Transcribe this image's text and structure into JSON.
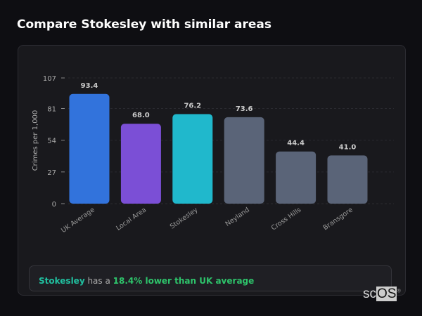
{
  "title": "Compare Stokesley with similar areas",
  "chart_data": {
    "type": "bar",
    "categories": [
      "UK Average",
      "Local Area",
      "Stokesley",
      "Neyland",
      "Cross Hills",
      "Bransgore"
    ],
    "values": [
      93.4,
      68.0,
      76.2,
      73.6,
      44.4,
      41.0
    ],
    "value_labels": [
      "93.4",
      "68.0",
      "76.2",
      "73.6",
      "44.4",
      "41.0"
    ],
    "colors": [
      "#3273dc",
      "#7b4fd6",
      "#20b8cc",
      "#5a6478",
      "#5a6478",
      "#5a6478"
    ],
    "ylabel": "Crimes per 1,000",
    "xlabel": "",
    "ylim": [
      0,
      107
    ],
    "yticks": [
      "0",
      "27",
      "54",
      "81",
      "107"
    ],
    "grid": true
  },
  "note": {
    "place": "Stokesley",
    "middle": " has a ",
    "highlight": "18.4% lower than UK average"
  },
  "logo": {
    "text_a": "sc",
    "text_b": "OS"
  }
}
